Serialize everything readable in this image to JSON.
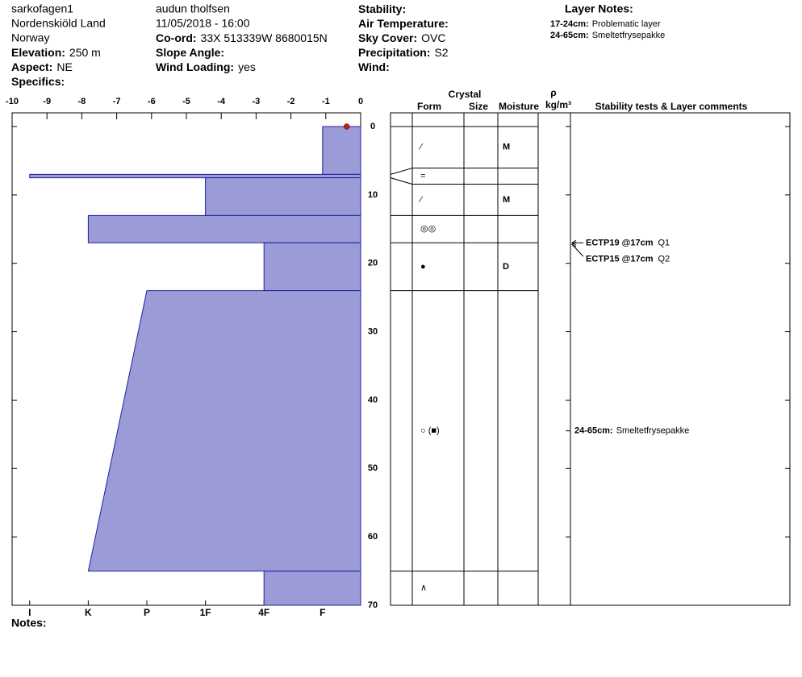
{
  "header": {
    "site": "sarkofagen1",
    "area": "Nordenskiöld Land",
    "country": "Norway",
    "elevation": {
      "label": "Elevation:",
      "value": "250 m"
    },
    "aspect": {
      "label": "Aspect:",
      "value": "NE"
    },
    "specifics": {
      "label": "Specifics:"
    },
    "observer": "audun tholfsen",
    "datetime": "11/05/2018 - 16:00",
    "coord": {
      "label": "Co-ord:",
      "value": "33X 513339W 8680015N"
    },
    "slope_angle": {
      "label": "Slope Angle:"
    },
    "wind_loading": {
      "label": "Wind Loading:",
      "value": "yes"
    },
    "stability": {
      "label": "Stability:"
    },
    "air_temperature": {
      "label": "Air Temperature:"
    },
    "sky_cover": {
      "label": "Sky Cover:",
      "value": "OVC"
    },
    "precipitation": {
      "label": "Precipitation:",
      "value": "S2"
    },
    "wind": {
      "label": "Wind:"
    }
  },
  "layer_notes": {
    "title": "Layer Notes:",
    "items": [
      {
        "range": "17-24cm:",
        "text": "Problematic layer"
      },
      {
        "range": "24-65cm:",
        "text": "Smeltetfrysepakke"
      }
    ]
  },
  "chart_data": {
    "type": "snow-profile",
    "xlim": [
      -10,
      0
    ],
    "xticks": [
      -10,
      -9,
      -8,
      -7,
      -6,
      -5,
      -4,
      -3,
      -2,
      -1,
      0
    ],
    "ylim": [
      0,
      70
    ],
    "yticks": [
      0,
      10,
      20,
      30,
      40,
      50,
      60,
      70
    ],
    "x2lim": [
      6.3,
      0.35
    ],
    "x2ticks": [
      {
        "value": 6,
        "label": "I"
      },
      {
        "value": 5,
        "label": "K"
      },
      {
        "value": 4,
        "label": "P"
      },
      {
        "value": 3,
        "label": "1F"
      },
      {
        "value": 2,
        "label": "4F"
      },
      {
        "value": 1,
        "label": "F"
      }
    ],
    "color": "#9b9bd8",
    "edge_color": "#2020a0",
    "temperature": [
      {
        "depth": 0,
        "temp": -0.4
      }
    ],
    "temperature_color": "#c0201a",
    "columns": {
      "crystal": "Crystal",
      "form": "Form",
      "size": "Size",
      "moisture": "Moisture",
      "density_symbol": "ρ",
      "density_unit": "kg/m³",
      "comments": "Stability tests & Layer comments"
    },
    "layers": [
      {
        "top": 0,
        "bottom": 7,
        "hardness": 1,
        "form": "⁄",
        "moisture": "M"
      },
      {
        "top": 7,
        "bottom": 7.5,
        "hardness": 6,
        "form": "="
      },
      {
        "top": 7.5,
        "bottom": 13,
        "hardness": 3,
        "form": "⁄",
        "moisture": "M"
      },
      {
        "top": 13,
        "bottom": 17,
        "hardness": 5,
        "form": "◎◎"
      },
      {
        "top": 17,
        "bottom": 24,
        "hardness": 2,
        "form": "●",
        "moisture": "D"
      },
      {
        "top": 24,
        "bottom": 65,
        "hardness": 4,
        "hardness_bottom": 5,
        "form": "○ (■)",
        "comment": {
          "range": "24-65cm:",
          "text": "Smeltetfrysepakke"
        }
      },
      {
        "top": 65,
        "bottom": 70,
        "hardness": 2,
        "form": "∧"
      }
    ],
    "tests": [
      {
        "label": "ECTP19 @17cm",
        "quality": "Q1",
        "depth": 17
      },
      {
        "label": "ECTP15 @17cm",
        "quality": "Q2",
        "depth": 17
      }
    ]
  },
  "notes": {
    "label": "Notes:"
  }
}
